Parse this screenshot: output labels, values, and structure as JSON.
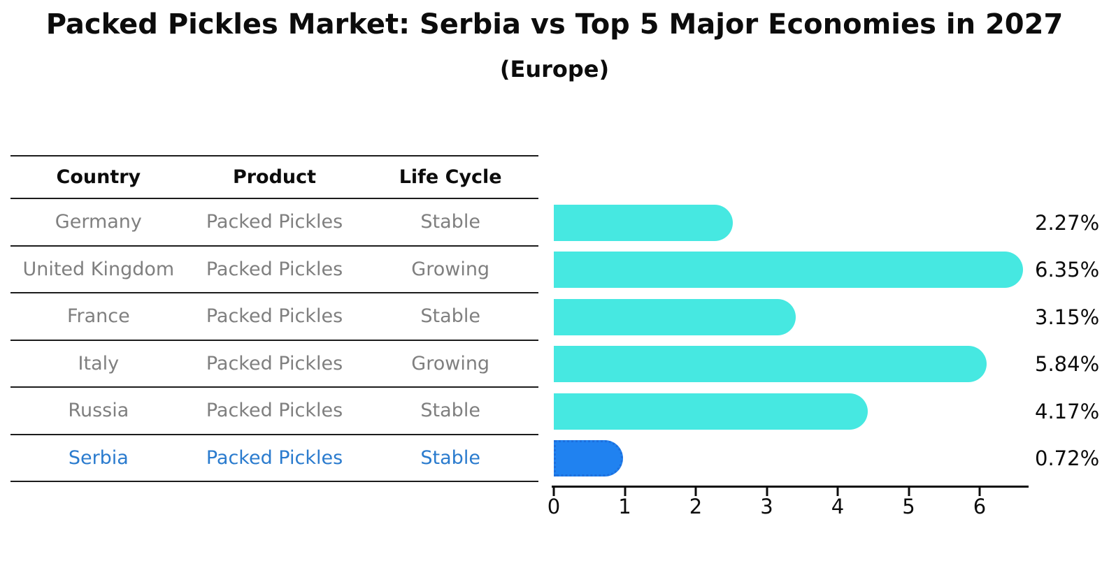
{
  "title": "Packed Pickles Market: Serbia vs Top 5 Major Economies in 2027",
  "subtitle": "(Europe)",
  "table": {
    "headers": [
      "Country",
      "Product",
      "Life Cycle"
    ],
    "rows": [
      {
        "country": "Germany",
        "product": "Packed Pickles",
        "life_cycle": "Stable"
      },
      {
        "country": "United Kingdom",
        "product": "Packed Pickles",
        "life_cycle": "Growing"
      },
      {
        "country": "France",
        "product": "Packed Pickles",
        "life_cycle": "Stable"
      },
      {
        "country": "Italy",
        "product": "Packed Pickles",
        "life_cycle": "Growing"
      },
      {
        "country": "Russia",
        "product": "Packed Pickles",
        "life_cycle": "Stable"
      },
      {
        "country": "Serbia",
        "product": "Packed Pickles",
        "life_cycle": "Stable"
      }
    ],
    "highlight_row": "Serbia"
  },
  "chart_data": {
    "type": "bar",
    "orientation": "horizontal",
    "title": "Packed Pickles Market: Serbia vs Top 5 Major Economies in 2027",
    "subtitle": "(Europe)",
    "categories": [
      "Germany",
      "United Kingdom",
      "France",
      "Italy",
      "Russia",
      "Serbia"
    ],
    "values": [
      2.27,
      6.35,
      3.15,
      5.84,
      4.17,
      0.72
    ],
    "value_labels": [
      "2.27%",
      "6.35%",
      "3.15%",
      "5.84%",
      "4.17%",
      "0.72%"
    ],
    "x_ticks": [
      0,
      1,
      2,
      3,
      4,
      5,
      6
    ],
    "xlim": [
      0,
      6.7
    ],
    "grid": false,
    "legend": false,
    "bar_color": "#46e8e1",
    "highlight_color": "#2082f0",
    "highlight_index": 5,
    "highlight_text_color": "#2a7bce",
    "text_color_muted": "#7f7f7f"
  }
}
